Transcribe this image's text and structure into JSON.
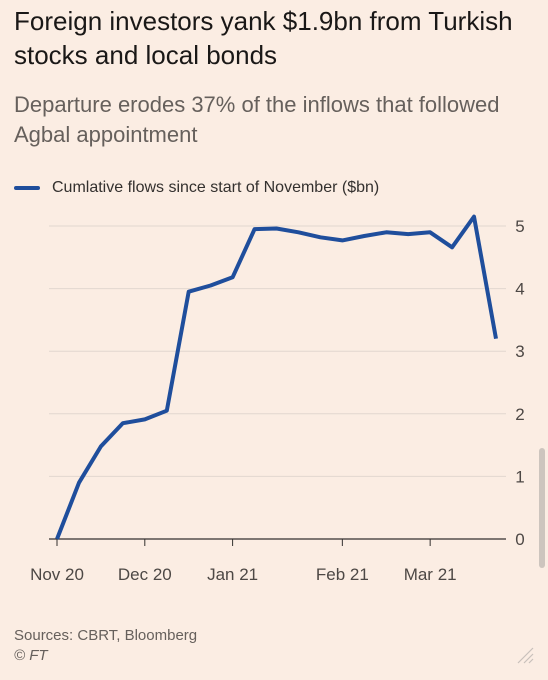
{
  "title": "Foreign investors yank $1.9bn from Turkish stocks and local bonds",
  "subtitle": "Departure erodes 37% of the inflows that followed Agbal appointment",
  "source": "Sources: CBRT, Bloomberg",
  "credit": "© FT",
  "colors": {
    "line": "#1f4e9c",
    "grid": "#e2d7cf",
    "axis": "#33302e",
    "background": "#fbede3"
  },
  "chart_data": {
    "type": "line",
    "title": "Foreign investors yank $1.9bn from Turkish stocks and local bonds",
    "subtitle": "Departure erodes 37% of the inflows that followed Agbal appointment",
    "xlabel": "",
    "ylabel": "",
    "ylim": [
      0,
      5
    ],
    "yticks": [
      0,
      1,
      2,
      3,
      4,
      5
    ],
    "y_axis_side": "right",
    "grid": "horizontal",
    "legend_position": "top-left",
    "x_ticks": [
      {
        "date": "2020-11-06",
        "label": "Nov 20"
      },
      {
        "date": "2020-12-04",
        "label": "Dec 20"
      },
      {
        "date": "2021-01-01",
        "label": "Jan 21"
      },
      {
        "date": "2021-02-05",
        "label": "Feb 21"
      },
      {
        "date": "2021-03-05",
        "label": "Mar 21"
      }
    ],
    "x_range": [
      "2020-11-06",
      "2021-03-26"
    ],
    "series": [
      {
        "name": "Cumlative flows since start of November ($bn)",
        "points": [
          {
            "x": "2020-11-06",
            "y": 0.0
          },
          {
            "x": "2020-11-13",
            "y": 0.9
          },
          {
            "x": "2020-11-20",
            "y": 1.48
          },
          {
            "x": "2020-11-27",
            "y": 1.85
          },
          {
            "x": "2020-12-04",
            "y": 1.91
          },
          {
            "x": "2020-12-11",
            "y": 2.05
          },
          {
            "x": "2020-12-18",
            "y": 3.95
          },
          {
            "x": "2020-12-25",
            "y": 4.05
          },
          {
            "x": "2021-01-01",
            "y": 4.18
          },
          {
            "x": "2021-01-08",
            "y": 4.95
          },
          {
            "x": "2021-01-15",
            "y": 4.96
          },
          {
            "x": "2021-01-22",
            "y": 4.9
          },
          {
            "x": "2021-01-29",
            "y": 4.82
          },
          {
            "x": "2021-02-05",
            "y": 4.77
          },
          {
            "x": "2021-02-12",
            "y": 4.84
          },
          {
            "x": "2021-02-19",
            "y": 4.9
          },
          {
            "x": "2021-02-26",
            "y": 4.87
          },
          {
            "x": "2021-03-05",
            "y": 4.9
          },
          {
            "x": "2021-03-12",
            "y": 4.66
          },
          {
            "x": "2021-03-19",
            "y": 5.15
          },
          {
            "x": "2021-03-26",
            "y": 3.2
          }
        ]
      }
    ]
  }
}
